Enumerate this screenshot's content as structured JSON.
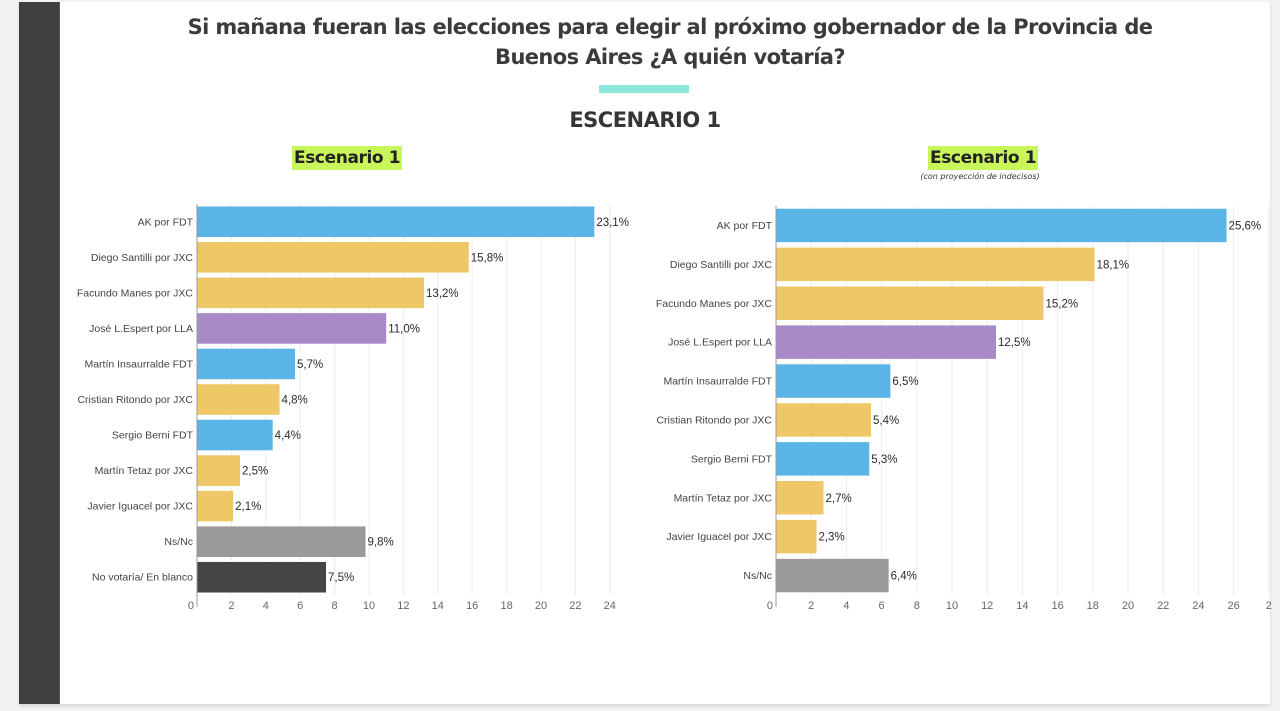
{
  "header": {
    "title_line1": "Si mañana fueran las elecciones para elegir al próximo gobernador de la Provincia de",
    "title_line2": "Buenos Aires ¿A quién votaría?",
    "scenario_heading": "ESCENARIO 1",
    "accent_color": "#8ee6dc"
  },
  "colors": {
    "FDT": "#5ab4e5",
    "JXC": "#eec866",
    "LLA": "#a98ac9",
    "NSNC": "#9a9a9a",
    "BLANCO": "#454545",
    "chip": "#c8f55a"
  },
  "chart_data": [
    {
      "type": "bar",
      "orientation": "horizontal",
      "title": "Escenario 1",
      "subtitle": "",
      "categories": [
        "AK por FDT",
        "Diego Santilli por JXC",
        "Facundo Manes por JXC",
        "José L.Espert por LLA",
        "Martín Insaurralde FDT",
        "Cristian Ritondo por JXC",
        "Sergio Berni FDT",
        "Martín Tetaz por JXC",
        "Javier Iguacel por JXC",
        "Ns/Nc",
        "No votaría/ En blanco"
      ],
      "values": [
        23.1,
        15.8,
        13.2,
        11.0,
        5.7,
        4.8,
        4.4,
        2.5,
        2.1,
        9.8,
        7.5
      ],
      "value_labels": [
        "23,1%",
        "15,8%",
        "13,2%",
        "11,0%",
        "5,7%",
        "4,8%",
        "4,4%",
        "2,5%",
        "2,1%",
        "9,8%",
        "7,5%"
      ],
      "groups": [
        "FDT",
        "JXC",
        "JXC",
        "LLA",
        "FDT",
        "JXC",
        "FDT",
        "JXC",
        "JXC",
        "NSNC",
        "BLANCO"
      ],
      "xlim": [
        0,
        24
      ],
      "xticks": [
        "0",
        "2",
        "4",
        "6",
        "8",
        "10",
        "12",
        "14",
        "16",
        "18",
        "20",
        "22",
        "24"
      ],
      "grid": true
    },
    {
      "type": "bar",
      "orientation": "horizontal",
      "title": "Escenario 1",
      "subtitle": "(con proyección de indecisos)",
      "categories": [
        "AK por FDT",
        "Diego Santilli por JXC",
        "Facundo Manes por JXC",
        "José L.Espert por LLA",
        "Martín Insaurralde FDT",
        "Cristian Ritondo por JXC",
        "Sergio Berni FDT",
        "Martín Tetaz por JXC",
        "Javier Iguacel por JXC",
        "Ns/Nc"
      ],
      "values": [
        25.6,
        18.1,
        15.2,
        12.5,
        6.5,
        5.4,
        5.3,
        2.7,
        2.3,
        6.4
      ],
      "value_labels": [
        "25,6%",
        "18,1%",
        "15,2%",
        "12,5%",
        "6,5%",
        "5,4%",
        "5,3%",
        "2,7%",
        "2,3%",
        "6,4%"
      ],
      "groups": [
        "FDT",
        "JXC",
        "JXC",
        "LLA",
        "FDT",
        "JXC",
        "FDT",
        "JXC",
        "JXC",
        "NSNC"
      ],
      "xlim": [
        0,
        28
      ],
      "xticks": [
        "0",
        "2",
        "4",
        "6",
        "8",
        "10",
        "12",
        "14",
        "16",
        "18",
        "20",
        "22",
        "24",
        "26",
        "2"
      ],
      "grid": true
    }
  ]
}
